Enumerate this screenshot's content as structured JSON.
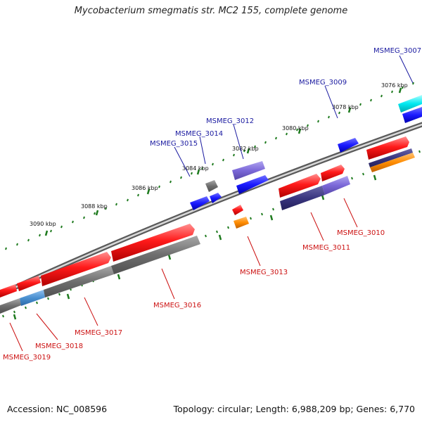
{
  "title": "Mycobacterium smegmatis str. MC2 155, complete genome",
  "footer": {
    "accession": "Accession: NC_008596",
    "stats": "Topology: circular; Length: 6,988,209 bp; Genes: 6,770"
  },
  "colors": {
    "backbone": "#7a7a7a",
    "tick": "#1e7a1e",
    "label_forward": "#1a1aa0",
    "label_reverse": "#cc1111",
    "gene_red": "#ff1a1a",
    "gene_gray": "#707070",
    "gene_blue": "#1a1aff",
    "gene_purple": "#7b68d8",
    "gene_navy": "#3a3680",
    "gene_orange": "#ff8c00",
    "gene_cyan": "#00e8f0",
    "gene_steelblue": "#4a90d0"
  },
  "scale_labels": [
    "3076 kbp",
    "3078 kbp",
    "3080 kbp",
    "3082 kbp",
    "3084 kbp",
    "3086 kbp",
    "3088 kbp",
    "3090 kbp"
  ],
  "gene_labels_forward": [
    "MSMEG_3007",
    "MSMEG_3009",
    "MSMEG_3012",
    "MSMEG_3014",
    "MSMEG_3015"
  ],
  "gene_labels_reverse": [
    "MSMEG_3010",
    "MSMEG_3011",
    "MSMEG_3013",
    "MSMEG_3016",
    "MSMEG_3017",
    "MSMEG_3018",
    "MSMEG_3019"
  ]
}
